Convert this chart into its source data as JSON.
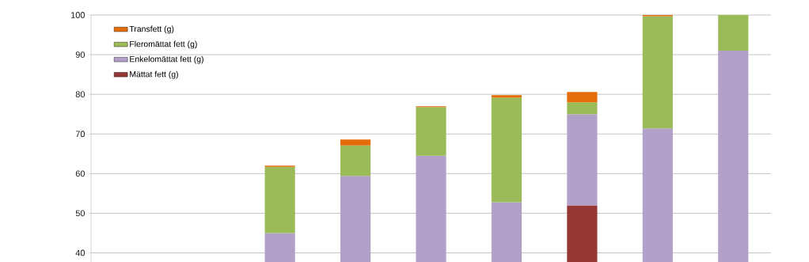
{
  "chart_data": {
    "type": "bar",
    "categories": [
      null,
      null,
      null,
      null,
      null,
      null,
      null,
      null,
      null
    ],
    "series": [
      {
        "name": "Mättat fett (g)",
        "color": "#953735",
        "values": [
          null,
          null,
          null,
          null,
          null,
          null,
          52,
          null,
          null
        ]
      },
      {
        "name": "Enkelomättat fett (g)",
        "color": "#b1a0c7",
        "values": [
          null,
          null,
          45,
          59.4,
          64.5,
          52.8,
          23,
          71.4,
          91
        ],
        "base": [
          null,
          null,
          null,
          null,
          null,
          null,
          52,
          null,
          null
        ]
      },
      {
        "name": "Fleromättat fett (g)",
        "color": "#9bbb59",
        "values": [
          null,
          null,
          16.7,
          7.7,
          12.3,
          26.4,
          3,
          28.3,
          9
        ],
        "base": [
          null,
          null,
          45,
          59.4,
          64.5,
          52.8,
          75,
          71.4,
          91
        ]
      },
      {
        "name": "Transfett (g)",
        "color": "#e46c0a",
        "values": [
          null,
          null,
          0.3,
          1.5,
          0.2,
          0.6,
          2.6,
          0.3,
          null
        ],
        "base": [
          null,
          null,
          61.7,
          67.1,
          76.8,
          79.2,
          78,
          99.7,
          null
        ]
      }
    ],
    "ylim": [
      37.7,
      100
    ],
    "yticks": [
      40,
      50,
      60,
      70,
      80,
      90,
      100
    ],
    "grid": "y",
    "legend": "top left",
    "tick_labels": "y"
  }
}
